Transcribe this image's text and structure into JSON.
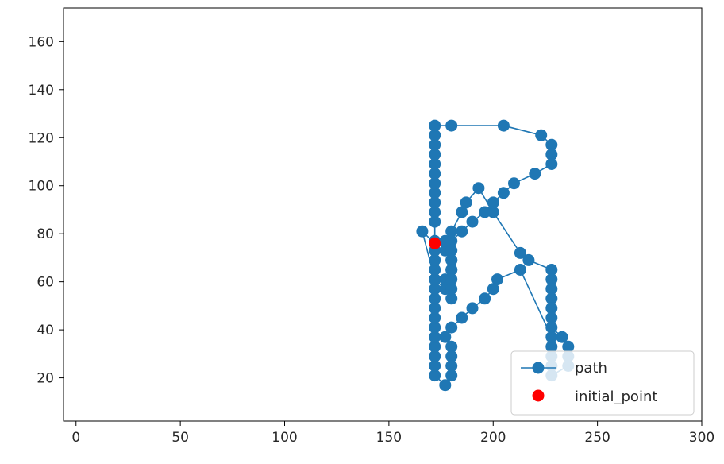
{
  "chart_data": {
    "type": "line",
    "title": "",
    "xlabel": "",
    "ylabel": "",
    "xlim": [
      -6,
      300
    ],
    "ylim": [
      2,
      174
    ],
    "xticks": [
      0,
      50,
      100,
      150,
      200,
      250,
      300
    ],
    "yticks": [
      20,
      40,
      60,
      80,
      100,
      120,
      140,
      160
    ],
    "grid": false,
    "legend_position": "lower right",
    "colors": {
      "path": "#1f77b4",
      "initial_point": "#ff0000"
    },
    "series": [
      {
        "name": "path",
        "style": "line+markers",
        "points": [
          [
            172,
            76
          ],
          [
            166,
            81
          ],
          [
            172,
            61
          ],
          [
            177,
            57
          ],
          [
            180,
            53
          ],
          [
            180,
            57
          ],
          [
            177,
            61
          ],
          [
            180,
            65
          ],
          [
            180,
            69
          ],
          [
            177,
            73
          ],
          [
            177,
            77
          ],
          [
            180,
            81
          ],
          [
            185,
            89
          ],
          [
            187,
            93
          ],
          [
            193,
            99
          ],
          [
            200,
            89
          ],
          [
            213,
            72
          ],
          [
            217,
            69
          ],
          [
            228,
            65
          ],
          [
            228,
            61
          ],
          [
            228,
            57
          ],
          [
            228,
            53
          ],
          [
            228,
            49
          ],
          [
            228,
            45
          ],
          [
            228,
            41
          ],
          [
            233,
            37
          ],
          [
            236,
            33
          ],
          [
            236,
            29
          ],
          [
            236,
            25
          ],
          [
            228,
            21
          ],
          [
            228,
            25
          ],
          [
            228,
            29
          ],
          [
            228,
            33
          ],
          [
            228,
            37
          ],
          [
            213,
            65
          ],
          [
            202,
            61
          ],
          [
            200,
            57
          ],
          [
            196,
            53
          ],
          [
            190,
            49
          ],
          [
            185,
            45
          ],
          [
            180,
            41
          ],
          [
            177,
            37
          ],
          [
            180,
            33
          ],
          [
            180,
            29
          ],
          [
            180,
            25
          ],
          [
            180,
            21
          ],
          [
            177,
            17
          ],
          [
            172,
            21
          ],
          [
            172,
            25
          ],
          [
            172,
            29
          ],
          [
            172,
            33
          ],
          [
            172,
            37
          ],
          [
            172,
            41
          ],
          [
            172,
            45
          ],
          [
            172,
            49
          ],
          [
            172,
            53
          ],
          [
            172,
            57
          ],
          [
            172,
            61
          ],
          [
            172,
            65
          ],
          [
            172,
            69
          ],
          [
            172,
            73
          ],
          [
            172,
            77
          ],
          [
            172,
            85
          ],
          [
            172,
            89
          ],
          [
            172,
            93
          ],
          [
            172,
            97
          ],
          [
            172,
            101
          ],
          [
            172,
            105
          ],
          [
            172,
            109
          ],
          [
            172,
            113
          ],
          [
            172,
            117
          ],
          [
            172,
            121
          ],
          [
            172,
            125
          ],
          [
            180,
            125
          ],
          [
            205,
            125
          ],
          [
            223,
            121
          ],
          [
            228,
            117
          ],
          [
            228,
            113
          ],
          [
            228,
            109
          ],
          [
            220,
            105
          ],
          [
            210,
            101
          ],
          [
            205,
            97
          ],
          [
            200,
            93
          ],
          [
            196,
            89
          ],
          [
            190,
            85
          ],
          [
            185,
            81
          ],
          [
            180,
            77
          ],
          [
            180,
            73
          ],
          [
            180,
            69
          ],
          [
            180,
            65
          ],
          [
            180,
            61
          ]
        ]
      },
      {
        "name": "initial_point",
        "style": "marker",
        "points": [
          [
            172,
            76
          ]
        ]
      }
    ],
    "legend": [
      "path",
      "initial_point"
    ]
  }
}
